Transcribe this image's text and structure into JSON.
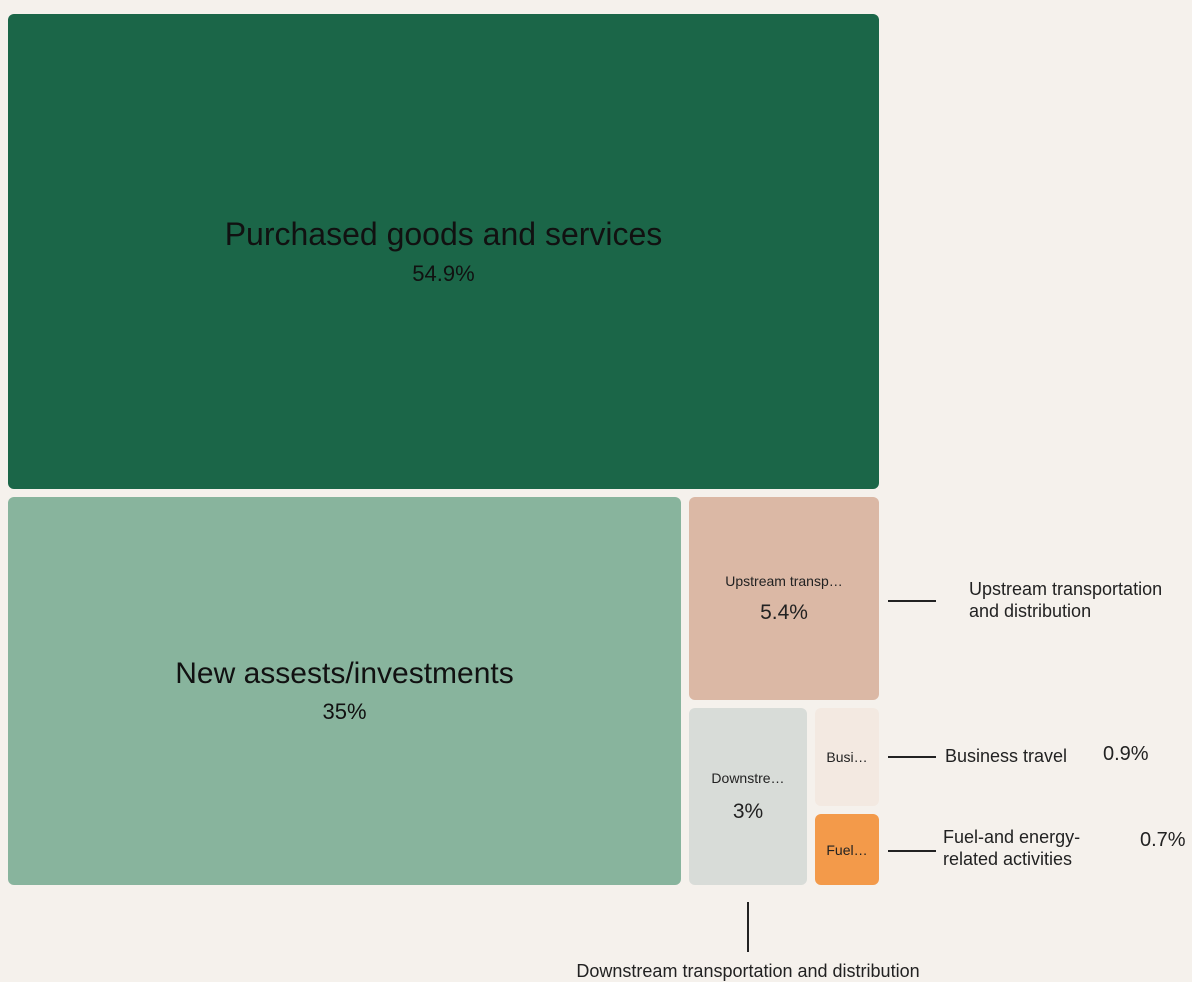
{
  "chart_data": {
    "type": "treemap",
    "series": [
      {
        "name": "Purchased goods and services",
        "value": 54.9,
        "value_label": "54.9%",
        "tile_label": "Purchased goods and services",
        "color": "#1b6648"
      },
      {
        "name": "New assests/investments",
        "value": 35,
        "value_label": "35%",
        "tile_label": "New assests/investments",
        "color": "#88b49d"
      },
      {
        "name": "Upstream transportation and distribution",
        "value": 5.4,
        "value_label": "5.4%",
        "tile_label": "Upstream transp…",
        "color": "#dbb8a5"
      },
      {
        "name": "Downstream transportation and distribution",
        "value": 3,
        "value_label": "3%",
        "tile_label": "Downstre…",
        "color": "#d8dcd8"
      },
      {
        "name": "Business travel",
        "value": 0.9,
        "value_label": "0.9%",
        "tile_label": "Busi…",
        "color": "#f3e9e1"
      },
      {
        "name": "Fuel-and energy-related activities",
        "value": 0.7,
        "value_label": "0.7%",
        "tile_label": "Fuel…",
        "color": "#f39a4a"
      }
    ],
    "callouts": {
      "upstream": {
        "line1": "Upstream transportation",
        "line2": "and distribution"
      },
      "business": {
        "label": "Business travel",
        "value": "0.9%"
      },
      "fuel": {
        "line1": "Fuel-and energy-",
        "line2": "related activities",
        "value": "0.7%"
      },
      "downstream": {
        "label": "Downstream transportation and distribution"
      }
    }
  }
}
